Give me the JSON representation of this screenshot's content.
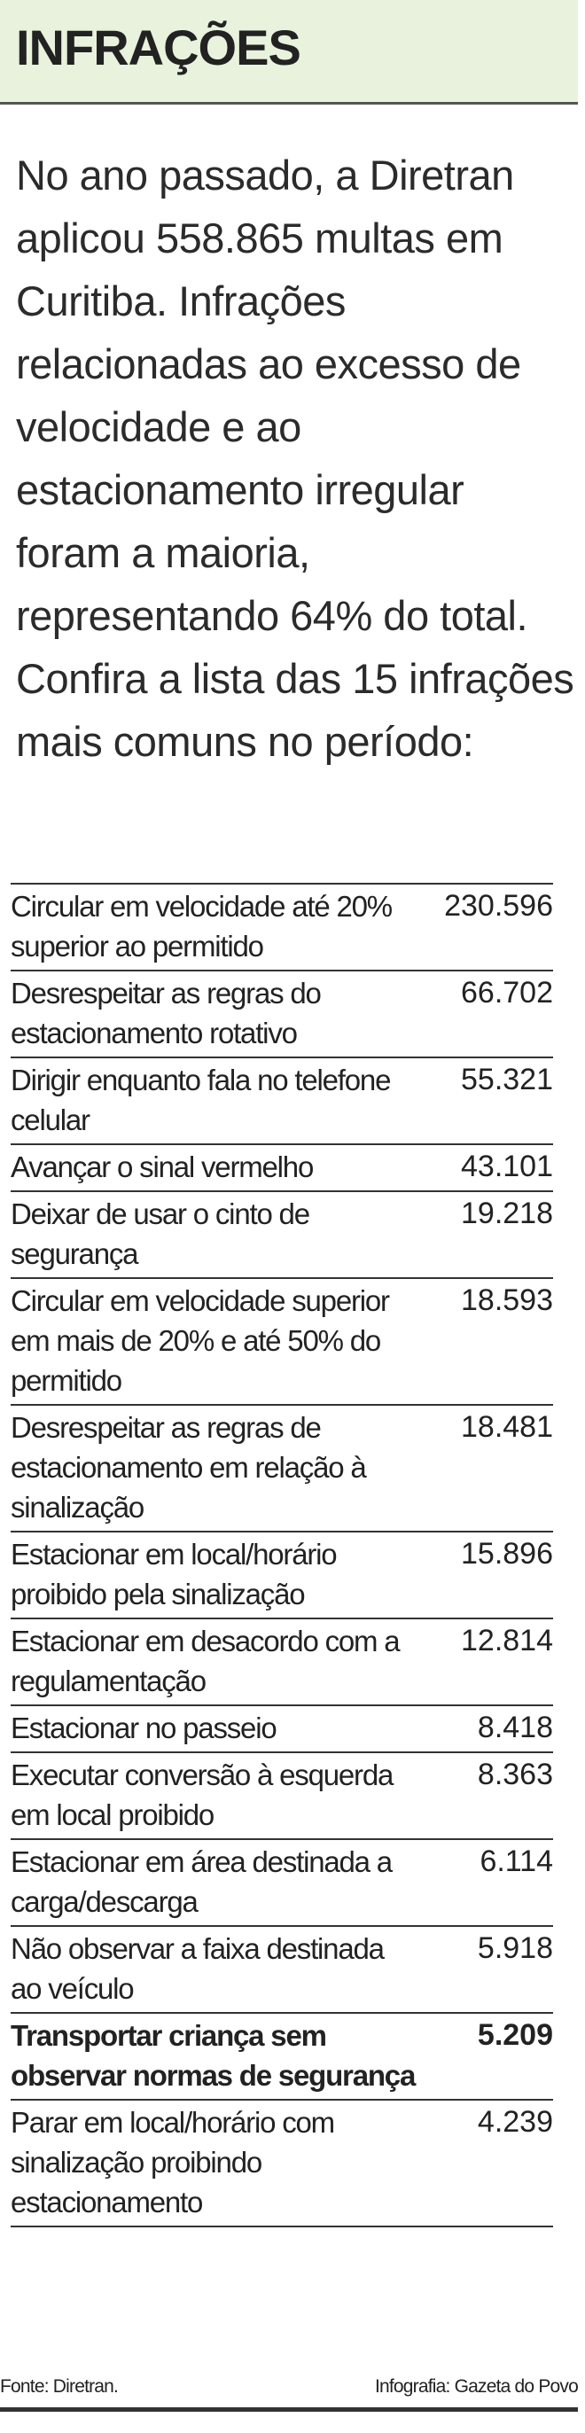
{
  "header": {
    "title": "INFRAÇÕES"
  },
  "intro": "No ano passado, a Diretran aplicou 558.865 multas em Curitiba. Infrações relacionadas ao excesso de velocidade e ao estacionamento irregular foram a maioria, representando 64% do total. Confira a lista das 15 infrações mais comuns no período:",
  "rows": [
    {
      "label": "Circular em velocidade até 20% superior ao permitido",
      "value": "230.596"
    },
    {
      "label": "Desrespeitar as regras do estacionamento rotativo",
      "value": "66.702"
    },
    {
      "label": "Dirigir enquanto fala no telefone celular",
      "value": "55.321"
    },
    {
      "label": "Avançar o sinal vermelho",
      "value": "43.101"
    },
    {
      "label": "Deixar de usar o cinto de segurança",
      "value": "19.218"
    },
    {
      "label": "Circular em velocidade superior em mais de 20% e até 50% do permitido",
      "value": "18.593"
    },
    {
      "label": "Desrespeitar as regras de estacionamento em relação à sinalização",
      "value": "18.481"
    },
    {
      "label": "Estacionar em local/horário proibido pela sinalização",
      "value": "15.896"
    },
    {
      "label": "Estacionar em desacordo com a regulamentação",
      "value": "12.814"
    },
    {
      "label": "Estacionar no passeio",
      "value": "8.418"
    },
    {
      "label": "Executar conversão à esquerda em local proibido",
      "value": "8.363"
    },
    {
      "label": "Estacionar em área destinada a carga/descarga",
      "value": "6.114"
    },
    {
      "label": "Não observar a faixa destinada ao veículo",
      "value": "5.918"
    },
    {
      "label": "Transportar criança sem observar normas de segurança",
      "value": "5.209"
    },
    {
      "label": "Parar em local/horário com sinalização proibindo estacionamento",
      "value": "4.239"
    }
  ],
  "footer": {
    "source": "Fonte: Diretran.",
    "credit": "Infografia: Gazeta do Povo"
  }
}
